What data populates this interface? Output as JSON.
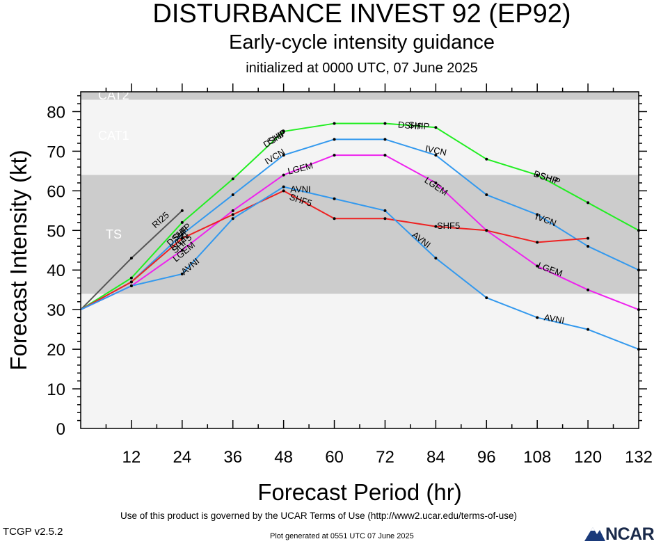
{
  "titles": {
    "main": "DISTURBANCE INVEST 92 (EP92)",
    "subtitle": "Early-cycle intensity guidance",
    "initialized": "initialized at 0000 UTC, 07 June 2025"
  },
  "footer": {
    "terms": "Use of this product is governed by the UCAR Terms of Use (http://www2.ucar.edu/terms-of-use)",
    "version": "TCGP v2.5.2",
    "generated": "Plot generated at 0551 UTC   07 June 2025",
    "logo": "NCAR"
  },
  "colors": {
    "band_light": "#f4f4f4",
    "band_ts": "#cccccc",
    "band_text": "#ffffff"
  },
  "chart_data": {
    "type": "line",
    "xlabel": "Forecast Period (hr)",
    "ylabel": "Forecast Intensity (kt)",
    "xlim": [
      0,
      132
    ],
    "ylim": [
      0,
      85
    ],
    "x_ticks": [
      12,
      24,
      36,
      48,
      60,
      72,
      84,
      96,
      108,
      120,
      132
    ],
    "y_ticks": [
      0,
      10,
      20,
      30,
      40,
      50,
      60,
      70,
      80
    ],
    "bands": [
      {
        "label": "TS",
        "from": 34,
        "to": 64,
        "color": "#cccccc"
      },
      {
        "label": "CAT1",
        "from": 64,
        "to": 83,
        "color": "#f4f4f4"
      },
      {
        "label": "CAT2",
        "from": 83,
        "to": 85,
        "color": "#cccccc"
      }
    ],
    "series": [
      {
        "name": "RI25",
        "color": "#555555",
        "x": [
          0,
          12,
          24
        ],
        "y": [
          30,
          43,
          55
        ],
        "labels": [
          {
            "x": 19,
            "y": 52.5,
            "angle": -42
          }
        ]
      },
      {
        "name": "DSHP",
        "color": "#22ee22",
        "x": [
          0,
          12,
          24,
          36,
          48,
          60,
          72,
          84,
          96,
          108,
          120,
          132
        ],
        "y": [
          30,
          38,
          52,
          63,
          75,
          77,
          77,
          76,
          68,
          64,
          57,
          50
        ],
        "labels": [
          {
            "x": 23,
            "y": 48.5,
            "angle": -42
          },
          {
            "x": 46,
            "y": 73,
            "angle": -32
          },
          {
            "x": 78,
            "y": 76.3,
            "angle": 5
          },
          {
            "x": 110,
            "y": 63.3,
            "angle": 18
          }
        ]
      },
      {
        "name": "SHIP",
        "color": "#22ee22",
        "x": [],
        "y": [],
        "labels": [
          {
            "x": 24,
            "y": 49.5,
            "angle": -42
          },
          {
            "x": 46.5,
            "y": 73.5,
            "angle": -32
          },
          {
            "x": 80,
            "y": 76.3,
            "angle": 5
          },
          {
            "x": 111,
            "y": 62.9,
            "angle": 18
          }
        ]
      },
      {
        "name": "IVCN",
        "color": "#3399ee",
        "x": [
          0,
          12,
          24,
          36,
          48,
          60,
          72,
          84,
          96,
          108,
          120,
          132
        ],
        "y": [
          30,
          37,
          49,
          59,
          69,
          73,
          73,
          69,
          59,
          54,
          46,
          40
        ],
        "labels": [
          {
            "x": 23.5,
            "y": 47,
            "angle": -42
          },
          {
            "x": 46,
            "y": 68.5,
            "angle": -32
          },
          {
            "x": 84,
            "y": 70,
            "angle": 12
          },
          {
            "x": 110,
            "y": 52.5,
            "angle": 20
          }
        ]
      },
      {
        "name": "LGEM",
        "color": "#ee22ee",
        "x": [
          0,
          12,
          24,
          36,
          48,
          60,
          72,
          84,
          96,
          108,
          120,
          132
        ],
        "y": [
          30,
          36,
          45,
          55,
          64,
          69,
          69,
          62,
          50,
          41,
          35,
          30
        ],
        "labels": [
          {
            "x": 24.5,
            "y": 44.5,
            "angle": -40
          },
          {
            "x": 52,
            "y": 65.5,
            "angle": -14
          },
          {
            "x": 84,
            "y": 61,
            "angle": 34
          },
          {
            "x": 111,
            "y": 40,
            "angle": 20
          }
        ]
      },
      {
        "name": "SHF5",
        "color": "#ee2222",
        "x": [
          0,
          12,
          24,
          36,
          48,
          60,
          72,
          84,
          96,
          108,
          120
        ],
        "y": [
          30,
          37,
          48,
          54,
          60,
          53,
          53,
          51,
          50,
          47,
          48
        ],
        "labels": [
          {
            "x": 24,
            "y": 46.5,
            "angle": -42
          },
          {
            "x": 52,
            "y": 57.5,
            "angle": 18
          },
          {
            "x": 87,
            "y": 51,
            "angle": 0
          }
        ]
      },
      {
        "name": "AVNI",
        "color": "#3399ee",
        "x": [
          0,
          12,
          24,
          36,
          48,
          60,
          72,
          84,
          96,
          108,
          120,
          132
        ],
        "y": [
          30,
          36,
          39,
          53,
          61,
          58,
          55,
          43,
          33,
          28,
          25,
          20
        ],
        "labels": [
          {
            "x": 26,
            "y": 40.8,
            "angle": -40
          },
          {
            "x": 52,
            "y": 60.2,
            "angle": 0
          },
          {
            "x": 80.5,
            "y": 47.5,
            "angle": 38
          },
          {
            "x": 112,
            "y": 27.5,
            "angle": 10
          }
        ]
      }
    ],
    "band_labels": [
      "TS",
      "CAT1",
      "CAT2"
    ]
  }
}
